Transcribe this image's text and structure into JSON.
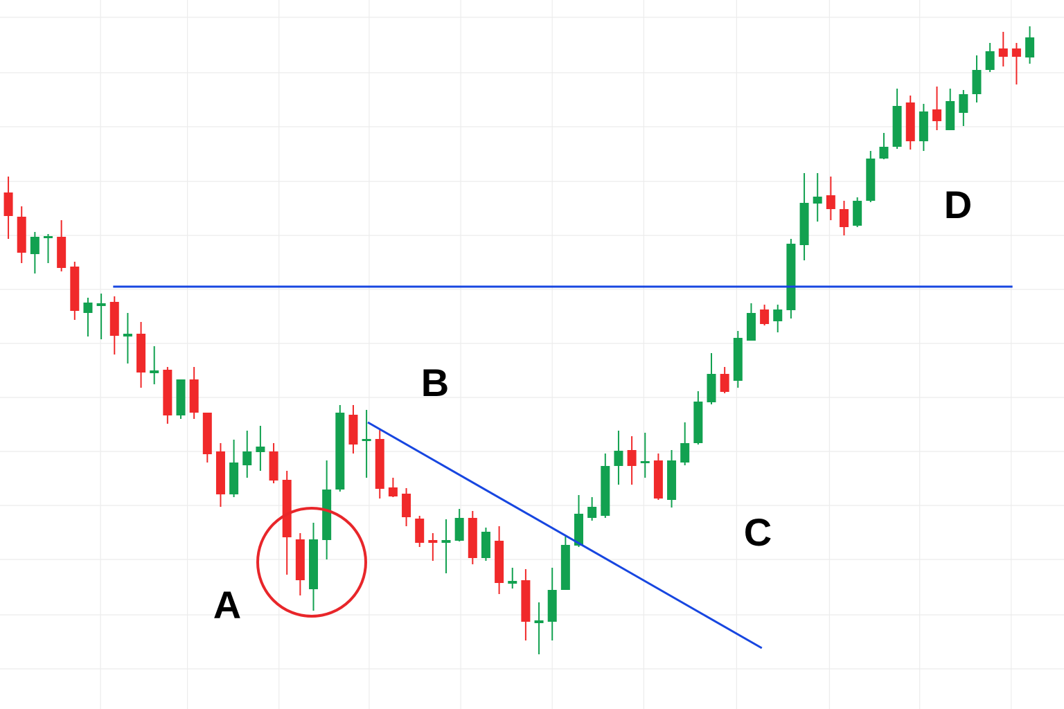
{
  "chart_data": {
    "type": "candlestick",
    "categories": [
      null,
      null,
      null,
      null,
      null,
      null,
      null,
      null,
      null,
      null,
      null,
      null,
      null,
      null,
      null,
      null,
      null,
      null,
      null,
      null,
      null,
      null,
      null,
      null,
      null,
      null,
      null,
      null,
      null,
      null,
      null,
      null,
      null,
      null,
      null,
      null,
      null,
      null,
      null,
      null,
      null,
      null,
      null,
      null,
      null,
      null,
      null,
      null,
      null,
      null,
      null,
      null,
      null,
      null,
      null,
      null,
      null,
      null,
      null,
      null,
      null,
      null,
      null,
      null,
      null,
      null,
      null,
      null,
      null,
      null,
      null,
      null,
      null,
      null,
      null,
      null,
      null,
      null
    ],
    "open": [
      746,
      711,
      657,
      680,
      682,
      639,
      572,
      582,
      588,
      538,
      542,
      485,
      490,
      424,
      476,
      428,
      372,
      310,
      352,
      371,
      372,
      331,
      245,
      173,
      244,
      317,
      425,
      388,
      390,
      320,
      311,
      275,
      244,
      240,
      243,
      276,
      218,
      243,
      181,
      186,
      124,
      126,
      172,
      236,
      276,
      279,
      351,
      374,
      355,
      359,
      302,
      356,
      384,
      443,
      484,
      474,
      532,
      577,
      560,
      576,
      670,
      730,
      742,
      722,
      698,
      734,
      795,
      812,
      876,
      820,
      866,
      836,
      861,
      888,
      923,
      954,
      954,
      941
    ],
    "high": [
      769,
      726,
      689,
      686,
      706,
      646,
      594,
      600,
      596,
      572,
      559,
      524,
      494,
      476,
      494,
      428,
      384,
      389,
      402,
      409,
      384,
      344,
      254,
      269,
      359,
      439,
      439,
      432,
      404,
      334,
      319,
      279,
      254,
      274,
      289,
      286,
      262,
      264,
      204,
      202,
      154,
      204,
      249,
      309,
      306,
      369,
      402,
      394,
      399,
      369,
      374,
      414,
      459,
      514,
      494,
      546,
      586,
      584,
      584,
      679,
      774,
      774,
      769,
      734,
      739,
      806,
      832,
      896,
      886,
      874,
      899,
      896,
      894,
      944,
      962,
      978,
      962,
      986
    ],
    "low": [
      679,
      644,
      629,
      644,
      632,
      562,
      538,
      534,
      512,
      499,
      464,
      469,
      412,
      419,
      419,
      356,
      292,
      306,
      334,
      344,
      326,
      194,
      164,
      142,
      216,
      314,
      369,
      334,
      304,
      306,
      264,
      234,
      214,
      196,
      242,
      209,
      214,
      166,
      174,
      99,
      79,
      99,
      172,
      234,
      272,
      276,
      324,
      324,
      334,
      302,
      291,
      352,
      382,
      440,
      456,
      464,
      532,
      554,
      544,
      564,
      648,
      704,
      706,
      684,
      696,
      732,
      794,
      809,
      808,
      806,
      836,
      836,
      842,
      876,
      920,
      928,
      902,
      932
    ],
    "close": [
      712,
      659,
      682,
      683,
      637,
      575,
      587,
      586,
      539,
      542,
      486,
      489,
      424,
      476,
      428,
      368,
      310,
      356,
      372,
      379,
      330,
      248,
      186,
      245,
      317,
      428,
      382,
      390,
      318,
      307,
      277,
      240,
      240,
      244,
      276,
      218,
      256,
      182,
      185,
      126,
      128,
      172,
      237,
      282,
      292,
      351,
      373,
      351,
      358,
      304,
      359,
      384,
      444,
      484,
      458,
      536,
      572,
      556,
      577,
      672,
      731,
      740,
      722,
      696,
      734,
      795,
      812,
      871,
      820,
      863,
      849,
      878,
      888,
      923,
      950,
      942,
      942,
      970
    ],
    "up_color": "#12a150",
    "down_color": "#f0292a",
    "lines": [
      {
        "x": [
          7.9,
          75.7
        ],
        "values": [
          610,
          610
        ],
        "color": "#1746e0"
      },
      {
        "x": [
          27.1,
          56.8
        ],
        "values": [
          414,
          88
        ],
        "color": "#1746e0"
      }
    ],
    "annotations": [
      "A",
      "B",
      "C",
      "D"
    ],
    "xlim": [
      -0.63,
      79.58
    ],
    "xticks": [
      6.95,
      13.5,
      20.4,
      27.2,
      34.1,
      41.0,
      47.9,
      54.9,
      61.9,
      68.7,
      75.6
    ],
    "ylim": [
      0,
      1024
    ],
    "yticks": [
      999,
      919,
      841,
      762,
      684,
      606,
      528,
      450,
      372,
      294,
      216,
      136,
      58
    ],
    "grid": true
  }
}
